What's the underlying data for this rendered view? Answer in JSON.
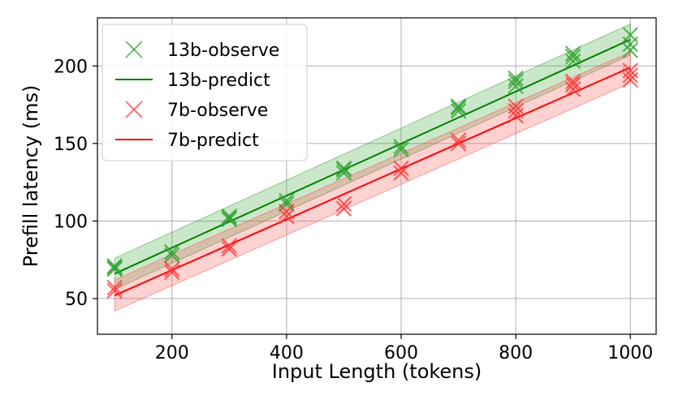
{
  "chart_data": {
    "type": "scatter",
    "xlabel": "Input Length (tokens)",
    "ylabel": "Prefill latency (ms)",
    "xlim": [
      70,
      1045
    ],
    "ylim": [
      27,
      231
    ],
    "x_ticks": [
      200,
      400,
      600,
      800,
      1000
    ],
    "y_ticks": [
      50,
      100,
      150,
      200
    ],
    "grid": true,
    "legend_position": "top-left",
    "series": [
      {
        "name": "13b-observe",
        "kind": "observe",
        "color": "#2ca02c",
        "points": [
          [
            100,
            69
          ],
          [
            100,
            71
          ],
          [
            100,
            70
          ],
          [
            200,
            78
          ],
          [
            200,
            80
          ],
          [
            300,
            101
          ],
          [
            300,
            103
          ],
          [
            300,
            102
          ],
          [
            400,
            111
          ],
          [
            400,
            113
          ],
          [
            500,
            131
          ],
          [
            500,
            134
          ],
          [
            500,
            133
          ],
          [
            600,
            146
          ],
          [
            600,
            148
          ],
          [
            700,
            171
          ],
          [
            700,
            174
          ],
          [
            700,
            173
          ],
          [
            800,
            187
          ],
          [
            800,
            190
          ],
          [
            800,
            192
          ],
          [
            900,
            203
          ],
          [
            900,
            206
          ],
          [
            900,
            208
          ],
          [
            1000,
            210
          ],
          [
            1000,
            214
          ],
          [
            1000,
            220
          ]
        ]
      },
      {
        "name": "13b-predict",
        "kind": "predict",
        "color": "#008000",
        "band_color": "#2ca02c",
        "x": [
          100,
          1000
        ],
        "y": [
          66,
          217
        ],
        "band": 10
      },
      {
        "name": "7b-observe",
        "kind": "observe",
        "color": "#ff3333",
        "points": [
          [
            100,
            55
          ],
          [
            100,
            57
          ],
          [
            200,
            67
          ],
          [
            200,
            69
          ],
          [
            300,
            82
          ],
          [
            300,
            84
          ],
          [
            400,
            103
          ],
          [
            400,
            106
          ],
          [
            500,
            108
          ],
          [
            500,
            111
          ],
          [
            600,
            131
          ],
          [
            600,
            134
          ],
          [
            700,
            150
          ],
          [
            700,
            152
          ],
          [
            800,
            168
          ],
          [
            800,
            171
          ],
          [
            800,
            174
          ],
          [
            900,
            185
          ],
          [
            900,
            188
          ],
          [
            900,
            190
          ],
          [
            1000,
            191
          ],
          [
            1000,
            194
          ],
          [
            1000,
            197
          ]
        ]
      },
      {
        "name": "7b-predict",
        "kind": "predict",
        "color": "#ff0000",
        "band_color": "#ff4d4d",
        "x": [
          100,
          1000
        ],
        "y": [
          52,
          199
        ],
        "band": 10
      }
    ]
  }
}
